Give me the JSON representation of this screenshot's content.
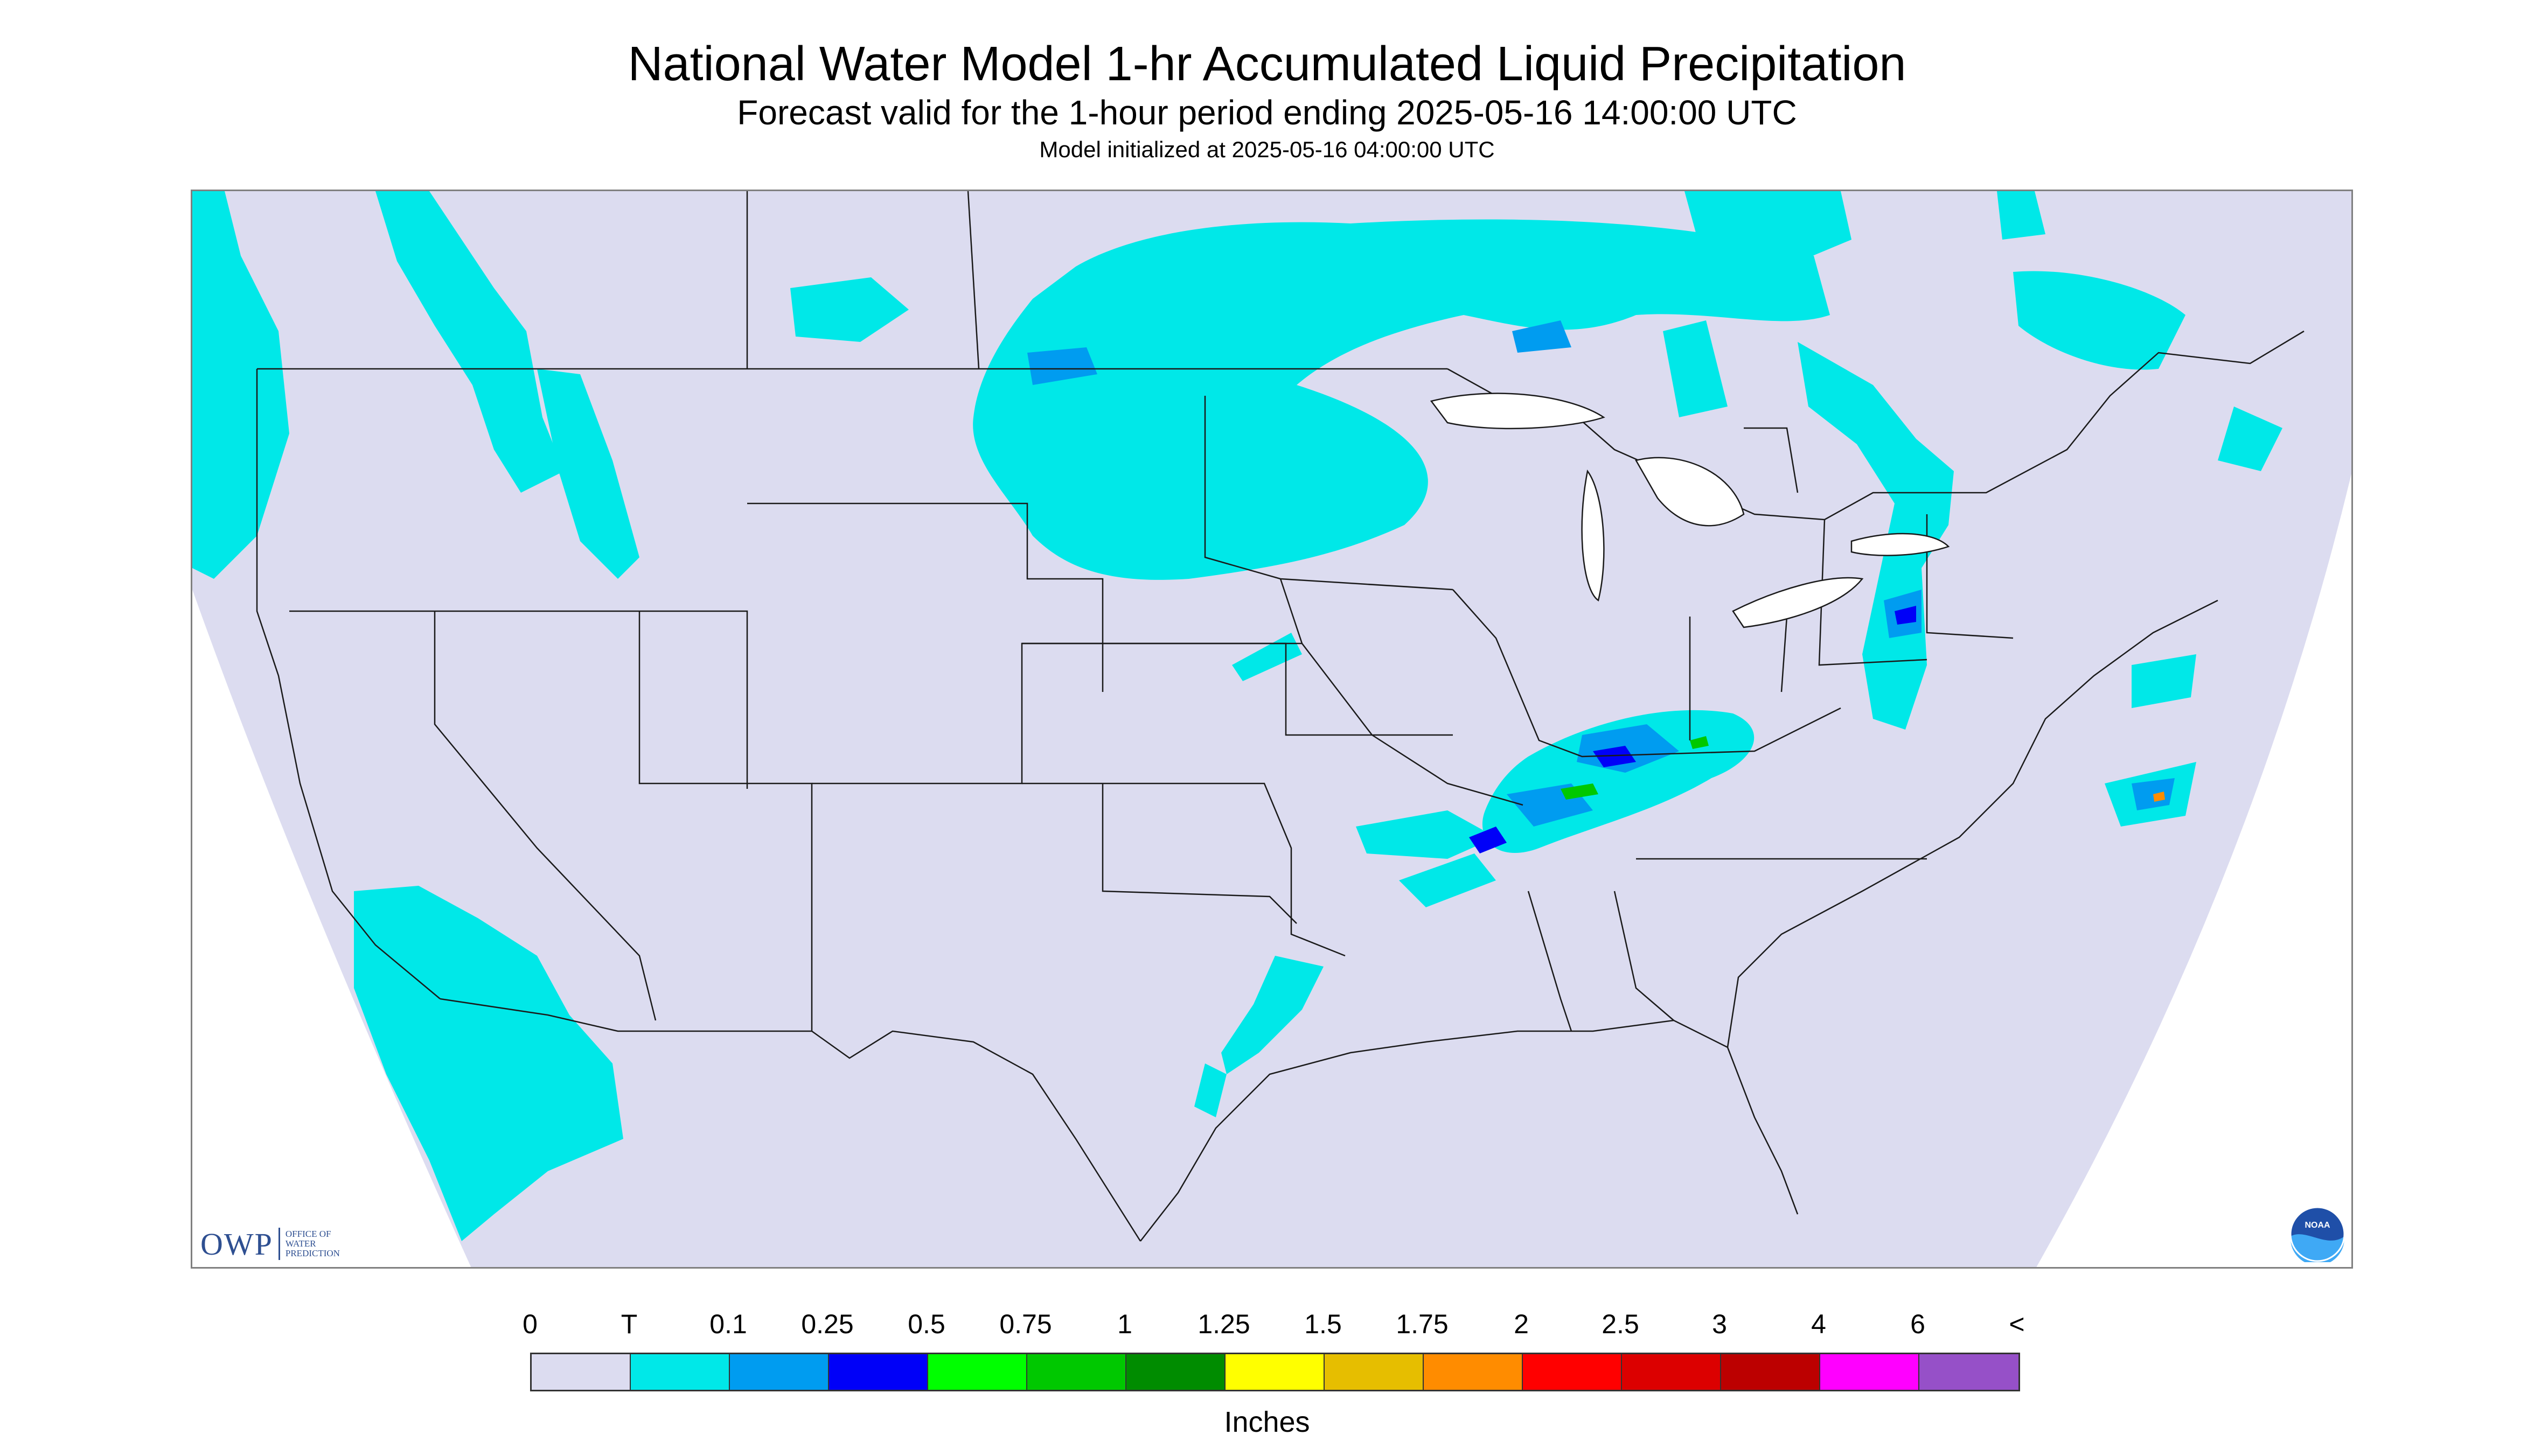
{
  "title": "National Water Model 1-hr Accumulated Liquid Precipitation",
  "subtitle": "Forecast valid for the 1-hour period ending 2025-05-16 14:00:00 UTC",
  "init_text": "Model initialized at 2025-05-16 04:00:00 UTC",
  "owp_logo": {
    "mark": "OWP",
    "text": "Office of Water Prediction"
  },
  "noaa_logo": {
    "text": "NOAA"
  },
  "legend": {
    "units": "Inches",
    "ticks": [
      "0",
      "T",
      "0.1",
      "0.25",
      "0.5",
      "0.75",
      "1",
      "1.25",
      "1.5",
      "1.75",
      "2",
      "2.5",
      "3",
      "4",
      "6",
      "<"
    ],
    "colors": [
      "#dcdcf0",
      "#00e8e8",
      "#009cf0",
      "#0000f8",
      "#00ff00",
      "#00c800",
      "#008c00",
      "#ffff00",
      "#e6be00",
      "#ff8c00",
      "#ff0000",
      "#dc0000",
      "#bc0000",
      "#ff00ff",
      "#9650c8"
    ]
  },
  "colors": {
    "domain_fill": "#dcdcf0",
    "outside_domain": "#ffffff",
    "light_precip": "#00e8e8",
    "boundary_lines": "#1a1a1a"
  }
}
